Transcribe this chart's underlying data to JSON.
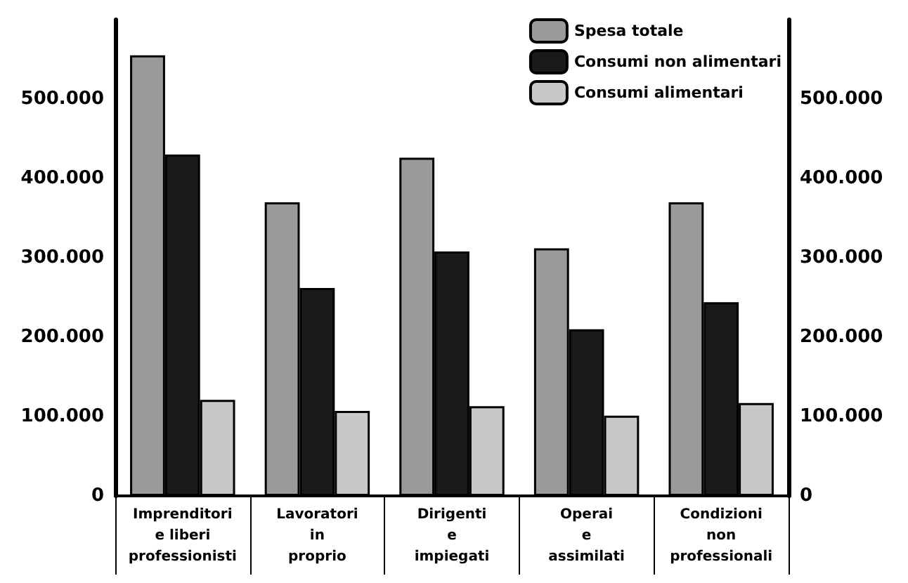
{
  "chart_data": {
    "type": "bar",
    "categories": [
      "Imprenditori\ne liberi\nprofessionisti",
      "Lavoratori\nin\nproprio",
      "Dirigenti\ne\nimpiegati",
      "Operai\ne\nassimilati",
      "Condizioni\nnon\nprofessionali"
    ],
    "series": [
      {
        "name": "Spesa totale",
        "color": "#9a9a9a",
        "values": [
          555000,
          370000,
          426000,
          312000,
          370000
        ]
      },
      {
        "name": "Consumi non alimentari",
        "color": "#1a1a1a",
        "values": [
          430000,
          262000,
          308000,
          210000,
          244000
        ]
      },
      {
        "name": "Consumi alimentari",
        "color": "#c8c8c8",
        "values": [
          121000,
          107000,
          113000,
          101000,
          117000
        ]
      }
    ],
    "ylim": [
      0,
      600000
    ],
    "yticks": [
      0,
      {
        "value": 100000,
        "label": "100.000"
      },
      {
        "value": 200000,
        "label": "200.000"
      },
      {
        "value": 300000,
        "label": "300.000"
      },
      {
        "value": 400000,
        "label": "400.000"
      },
      {
        "value": 500000,
        "label": "500.000"
      }
    ],
    "y2lim": [
      0,
      600000
    ],
    "y2ticks": [
      0,
      {
        "value": 100000,
        "label": "100.000"
      },
      {
        "value": 200000,
        "label": "200.000"
      },
      {
        "value": 300000,
        "label": "300.000"
      },
      {
        "value": 400000,
        "label": "400.000"
      },
      {
        "value": 500000,
        "label": "500.000"
      }
    ],
    "grid": false,
    "legend": "top right"
  }
}
